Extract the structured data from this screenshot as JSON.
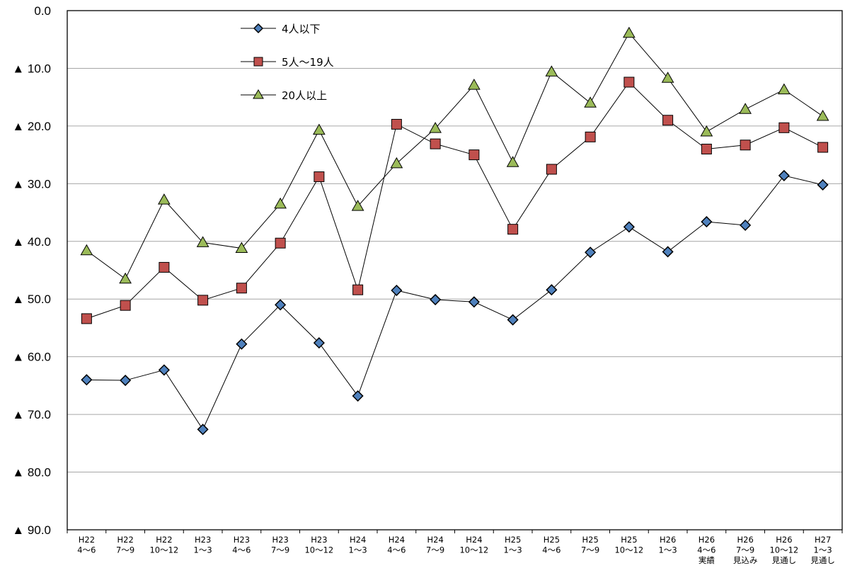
{
  "chart_data": {
    "type": "line",
    "title": "",
    "xlabel": "",
    "ylabel": "",
    "ylim": [
      0,
      90
    ],
    "y_reversed": true,
    "y_ticks": [
      {
        "value": 0,
        "label": "0.0"
      },
      {
        "value": 10,
        "label": "▲ 10.0"
      },
      {
        "value": 20,
        "label": "▲ 20.0"
      },
      {
        "value": 30,
        "label": "▲ 30.0"
      },
      {
        "value": 40,
        "label": "▲ 40.0"
      },
      {
        "value": 50,
        "label": "▲ 50.0"
      },
      {
        "value": 60,
        "label": "▲ 60.0"
      },
      {
        "value": 70,
        "label": "▲ 70.0"
      },
      {
        "value": 80,
        "label": "▲ 80.0"
      },
      {
        "value": 90,
        "label": "▲ 90.0"
      }
    ],
    "grid": true,
    "legend_position": "top-left inside plot",
    "categories": [
      [
        "H22",
        "4～6"
      ],
      [
        "H22",
        "7～9"
      ],
      [
        "H22",
        "10～12"
      ],
      [
        "H23",
        "1～3"
      ],
      [
        "H23",
        "4～6"
      ],
      [
        "H23",
        "7～9"
      ],
      [
        "H23",
        "10～12"
      ],
      [
        "H24",
        "1～3"
      ],
      [
        "H24",
        "4～6"
      ],
      [
        "H24",
        "7～9"
      ],
      [
        "H24",
        "10～12"
      ],
      [
        "H25",
        "1～3"
      ],
      [
        "H25",
        "4～6"
      ],
      [
        "H25",
        "7～9"
      ],
      [
        "H25",
        "10～12"
      ],
      [
        "H26",
        "1～3"
      ],
      [
        "H26",
        "4～6",
        "実績"
      ],
      [
        "H26",
        "7～9",
        "見込み"
      ],
      [
        "H26",
        "10～12",
        "見通し"
      ],
      [
        "H27",
        "1～3",
        "見通し"
      ]
    ],
    "series": [
      {
        "name": "4人以下",
        "marker": "diamond",
        "color": "#4F81BD",
        "values": [
          -64.0,
          -64.1,
          -62.3,
          -72.6,
          -57.8,
          -51.0,
          -57.6,
          -66.8,
          -48.5,
          -50.1,
          -50.5,
          -53.6,
          -48.4,
          -41.9,
          -37.5,
          -41.8,
          -36.6,
          -37.2,
          -28.6,
          -30.2
        ]
      },
      {
        "name": "5人～19人",
        "marker": "square",
        "color": "#C0504D",
        "values": [
          -53.4,
          -51.1,
          -44.5,
          -50.2,
          -48.1,
          -40.3,
          -28.8,
          -48.4,
          -19.7,
          -23.1,
          -25.0,
          -37.9,
          -27.5,
          -21.9,
          -12.4,
          -19.0,
          -24.0,
          -23.3,
          -20.3,
          -23.7
        ]
      },
      {
        "name": "20人以上",
        "marker": "triangle",
        "color": "#9BBB59",
        "values": [
          -41.6,
          -46.5,
          -32.8,
          -40.2,
          -41.2,
          -33.5,
          -20.7,
          -33.9,
          -26.5,
          -20.4,
          -12.9,
          -26.3,
          -10.6,
          -16.0,
          -3.9,
          -11.7,
          -21.0,
          -17.1,
          -13.7,
          -18.3
        ]
      }
    ]
  }
}
